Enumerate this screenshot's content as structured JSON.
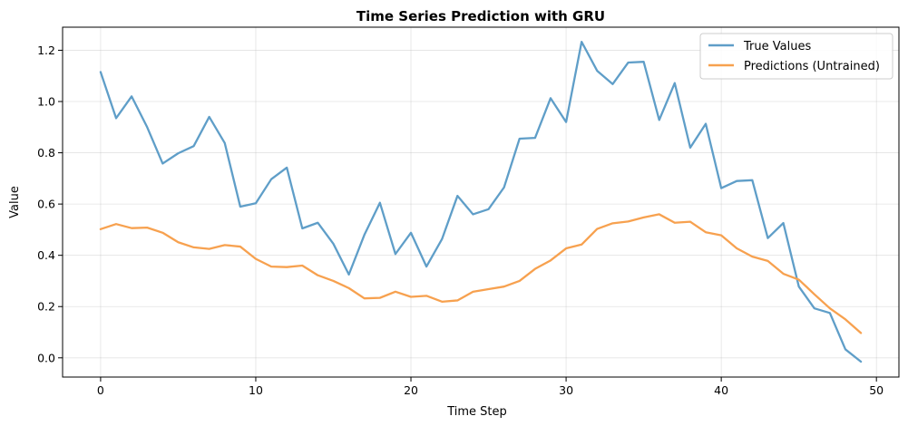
{
  "chart_data": {
    "type": "line",
    "title": "Time Series Prediction with GRU",
    "xlabel": "Time Step",
    "ylabel": "Value",
    "xlim": [
      -2.45,
      51.45
    ],
    "ylim": [
      -0.075,
      1.29
    ],
    "xticks": [
      0,
      10,
      20,
      30,
      40,
      50
    ],
    "yticks": [
      0.0,
      0.2,
      0.4,
      0.6,
      0.8,
      1.0,
      1.2
    ],
    "xtick_labels": [
      "0",
      "10",
      "20",
      "30",
      "40",
      "50"
    ],
    "ytick_labels": [
      "0.0",
      "0.2",
      "0.4",
      "0.6",
      "0.8",
      "1.0",
      "1.2"
    ],
    "grid": true,
    "legend_position": "top-right",
    "x": [
      0,
      1,
      2,
      3,
      4,
      5,
      6,
      7,
      8,
      9,
      10,
      11,
      12,
      13,
      14,
      15,
      16,
      17,
      18,
      19,
      20,
      21,
      22,
      23,
      24,
      25,
      26,
      27,
      28,
      29,
      30,
      31,
      32,
      33,
      34,
      35,
      36,
      37,
      38,
      39,
      40,
      41,
      42,
      43,
      44,
      45,
      46,
      47,
      48,
      49
    ],
    "series": [
      {
        "name": "True Values",
        "color": "#5f9ec8",
        "values": [
          1.115,
          0.935,
          1.02,
          0.9,
          0.758,
          0.798,
          0.826,
          0.94,
          0.838,
          0.59,
          0.603,
          0.697,
          0.742,
          0.505,
          0.527,
          0.445,
          0.325,
          0.48,
          0.605,
          0.405,
          0.488,
          0.356,
          0.463,
          0.632,
          0.56,
          0.58,
          0.665,
          0.855,
          0.858,
          1.013,
          0.92,
          1.233,
          1.12,
          1.068,
          1.152,
          1.155,
          0.928,
          1.072,
          0.82,
          0.913,
          0.662,
          0.69,
          0.693,
          0.467,
          0.526,
          0.278,
          0.193,
          0.175,
          0.033,
          -0.015
        ]
      },
      {
        "name": "Predictions (Untrained)",
        "color": "#f7a14f",
        "values": [
          0.502,
          0.522,
          0.506,
          0.508,
          0.488,
          0.451,
          0.431,
          0.425,
          0.44,
          0.434,
          0.386,
          0.356,
          0.354,
          0.36,
          0.322,
          0.3,
          0.272,
          0.232,
          0.234,
          0.258,
          0.238,
          0.242,
          0.219,
          0.224,
          0.258,
          0.268,
          0.278,
          0.3,
          0.347,
          0.38,
          0.427,
          0.442,
          0.503,
          0.525,
          0.532,
          0.548,
          0.56,
          0.527,
          0.531,
          0.49,
          0.478,
          0.427,
          0.395,
          0.378,
          0.328,
          0.305,
          0.248,
          0.193,
          0.15,
          0.097
        ]
      }
    ]
  }
}
